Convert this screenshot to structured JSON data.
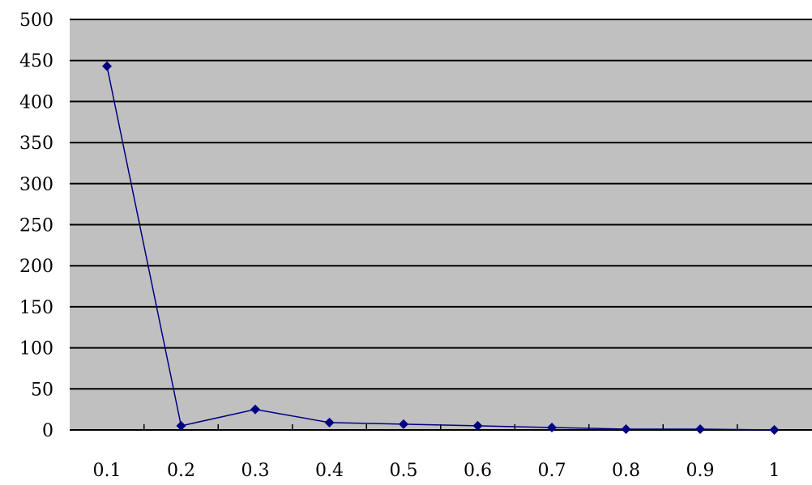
{
  "chart_data": {
    "type": "line",
    "title": "",
    "xlabel": "",
    "ylabel": "",
    "categories": [
      "0.1",
      "0.2",
      "0.3",
      "0.4",
      "0.5",
      "0.6",
      "0.7",
      "0.8",
      "0.9",
      "1"
    ],
    "series": [
      {
        "values": [
          443,
          5,
          25,
          9,
          7,
          5,
          3,
          1,
          1,
          0
        ]
      }
    ],
    "ylim": [
      0,
      500
    ],
    "yticks": [
      "0",
      "50",
      "100",
      "150",
      "200",
      "250",
      "300",
      "350",
      "400",
      "450",
      "500"
    ],
    "grid": true,
    "legend": "none"
  },
  "colors": {
    "plot_background": "#c0c0c0",
    "gridline": "#000000",
    "series_line": "#000080",
    "marker": "#000080"
  }
}
